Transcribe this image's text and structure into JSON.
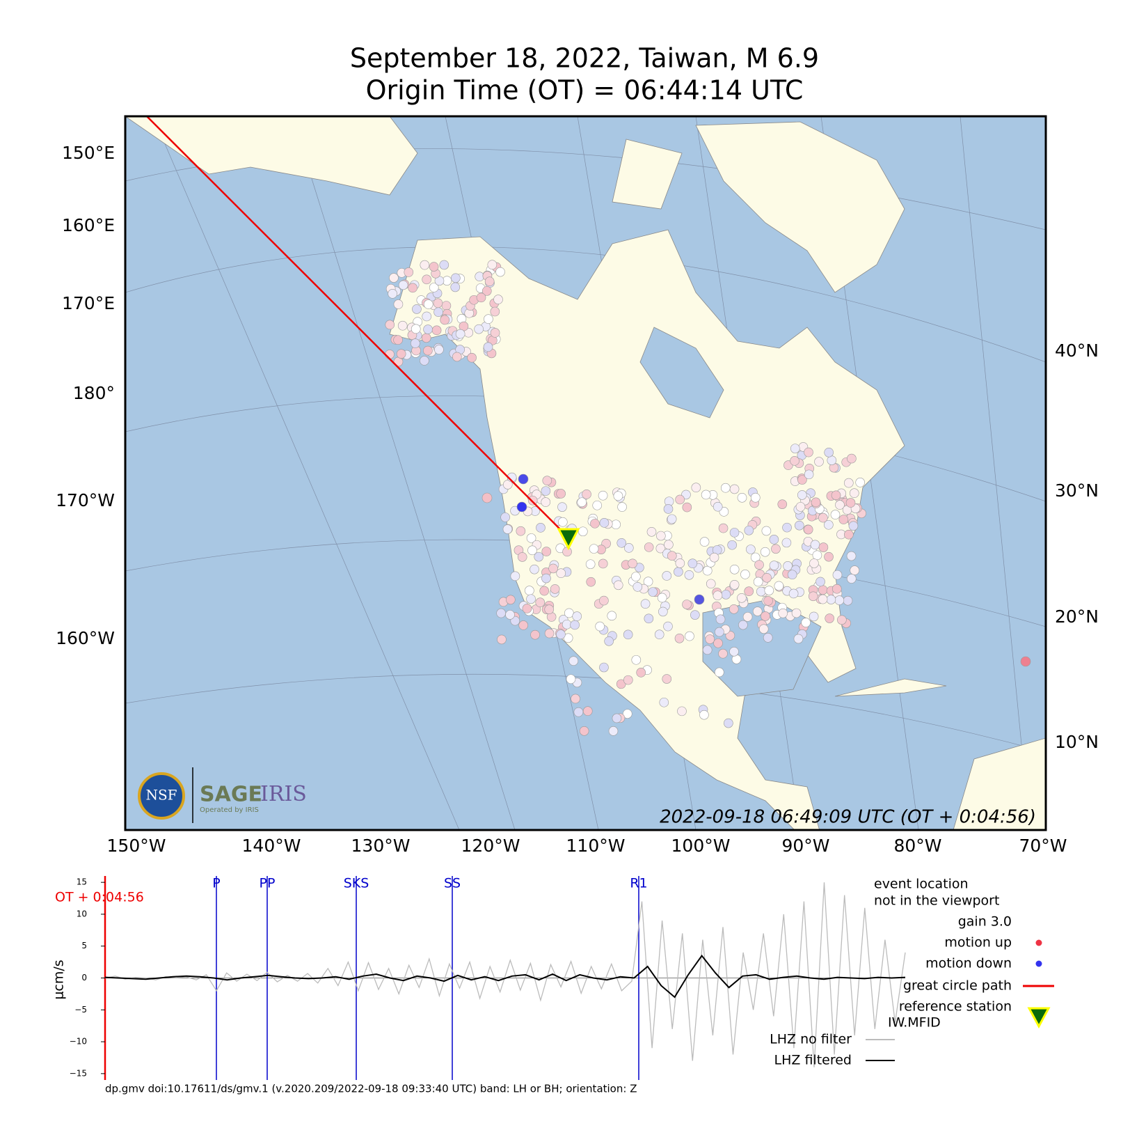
{
  "header": {
    "title": "September 18, 2022, Taiwan, M 6.9",
    "subtitle": "Origin Time (OT) = 06:44:14 UTC"
  },
  "map": {
    "lon_labels": [
      "150°W",
      "140°W",
      "130°W",
      "120°W",
      "110°W",
      "100°W",
      "90°W",
      "80°W",
      "70°W"
    ],
    "lat_labels_right": [
      "40°N",
      "30°N",
      "20°N",
      "10°N"
    ],
    "lat_labels_left": [
      "150°E",
      "160°E",
      "170°E",
      "180°",
      "170°W",
      "160°W"
    ],
    "timestamp": "2022-09-18 06:49:09 UTC (OT + 0:04:56)",
    "logo": {
      "nsf": "NSF",
      "sage": "SAGE",
      "iris": "IRIS",
      "operated": "Operated by IRIS"
    }
  },
  "chart_data": {
    "type": "line",
    "y_label": "μcm/s",
    "ot_label": "OT + 0:04:56",
    "ylim": [
      -16,
      16
    ],
    "yticks": [
      {
        "value": -15,
        "label": "−15"
      },
      {
        "value": -10,
        "label": "−10"
      },
      {
        "value": -5,
        "label": "−5"
      },
      0,
      5,
      10,
      15
    ],
    "phases": [
      "P",
      "PP",
      "SKS",
      "SS",
      "R1"
    ],
    "series": [
      {
        "name": "LHZ no filter",
        "color": "#bbbbbb",
        "values": [
          0,
          0.3,
          -0.2,
          0.1,
          0,
          -0.3,
          0.2,
          0,
          0.2,
          -0.3,
          0.5,
          -2,
          0.8,
          -0.5,
          0.6,
          -0.4,
          0.9,
          -0.6,
          0.4,
          -0.5,
          0.7,
          -0.8,
          1.5,
          -1.2,
          2.5,
          -2,
          2.4,
          -1.8,
          1.5,
          -2.5,
          2,
          -1.5,
          3,
          -2.8,
          2.2,
          -1.6,
          2.5,
          -3.2,
          1.8,
          -2.2,
          2.8,
          -1.9,
          2.3,
          -3.5,
          2.1,
          -1.4,
          2.6,
          -2.4,
          1.8,
          -1.7,
          2.2,
          -2,
          -0.5,
          12,
          -11,
          9,
          -8,
          7,
          -13,
          6,
          -9,
          8,
          -12,
          4,
          -5,
          7,
          -6,
          10,
          -11,
          12,
          -14,
          15,
          -12,
          13,
          -9,
          11,
          -8,
          6,
          -7,
          4
        ]
      },
      {
        "name": "LHZ filtered",
        "color": "#000000",
        "values": [
          0.1,
          0,
          -0.1,
          -0.2,
          0,
          0.2,
          0.3,
          0.2,
          0,
          -0.3,
          0,
          0.2,
          0.4,
          0.2,
          0,
          -0.1,
          0,
          0.2,
          -0.2,
          0.3,
          0.6,
          0,
          -0.4,
          0.3,
          0,
          -0.5,
          0.4,
          -0.3,
          0.2,
          -0.4,
          0.3,
          0.5,
          -0.3,
          0.6,
          -0.4,
          0.5,
          0,
          -0.3,
          0.2,
          0,
          1.8,
          -1.2,
          -3,
          0.5,
          3.5,
          0.8,
          -1.5,
          0.3,
          0.5,
          -0.2,
          0.1,
          0.3,
          0,
          -0.2,
          0.1,
          0,
          -0.1,
          0.1,
          0,
          0.1
        ]
      }
    ],
    "legend": {
      "event1": "event location",
      "event2": "not in the viewport",
      "gain": "gain  3.0",
      "up": "motion up",
      "down": "motion down",
      "path": "great circle path",
      "ref": "reference station",
      "station": "IW.MFID"
    },
    "footer": "dp.gmv doi:10.17611/ds/gmv.1 (v.2020.209/2022-09-18 09:33:40 UTC) band: LH or BH; orientation: Z"
  }
}
